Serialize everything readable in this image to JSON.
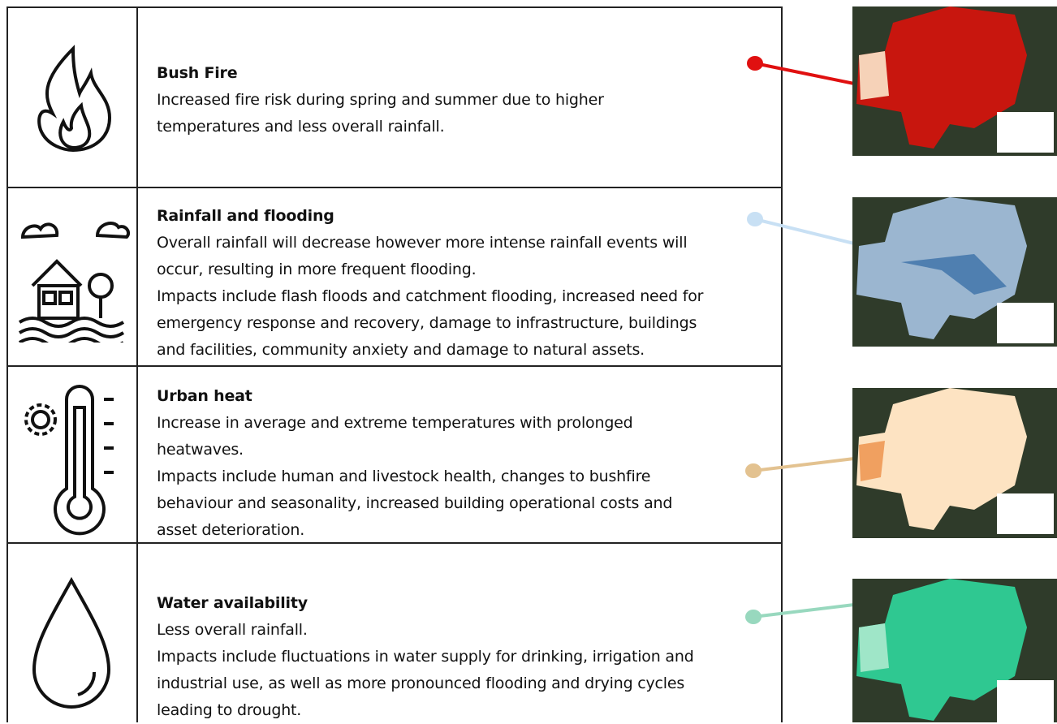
{
  "rows": [
    {
      "title": "Bush Fire",
      "lines": [
        "Increased fire risk during spring and summer due to higher",
        "temperatures and less overall rainfall."
      ]
    },
    {
      "title": "Rainfall and flooding",
      "lines": [
        "Overall rainfall will decrease however more intense rainfall events will",
        "occur, resulting in more frequent flooding.",
        "Impacts include flash floods and catchment flooding, increased need for",
        "emergency response and recovery, damage to infrastructure, buildings",
        "and facilities, community anxiety and damage to natural assets."
      ]
    },
    {
      "title": "Urban heat",
      "lines": [
        "Increase in average and extreme temperatures with prolonged",
        "heatwaves.",
        "Impacts include human and livestock health, changes to bushfire",
        "behaviour and seasonality, increased building operational costs and",
        "asset deterioration."
      ]
    },
    {
      "title": "Water availability",
      "lines": [
        "Less overall rainfall.",
        "Impacts include fluctuations in water supply for drinking, irrigation and",
        "industrial use, as well as more pronounced flooding and drying cycles",
        "leading to drought."
      ]
    }
  ]
}
